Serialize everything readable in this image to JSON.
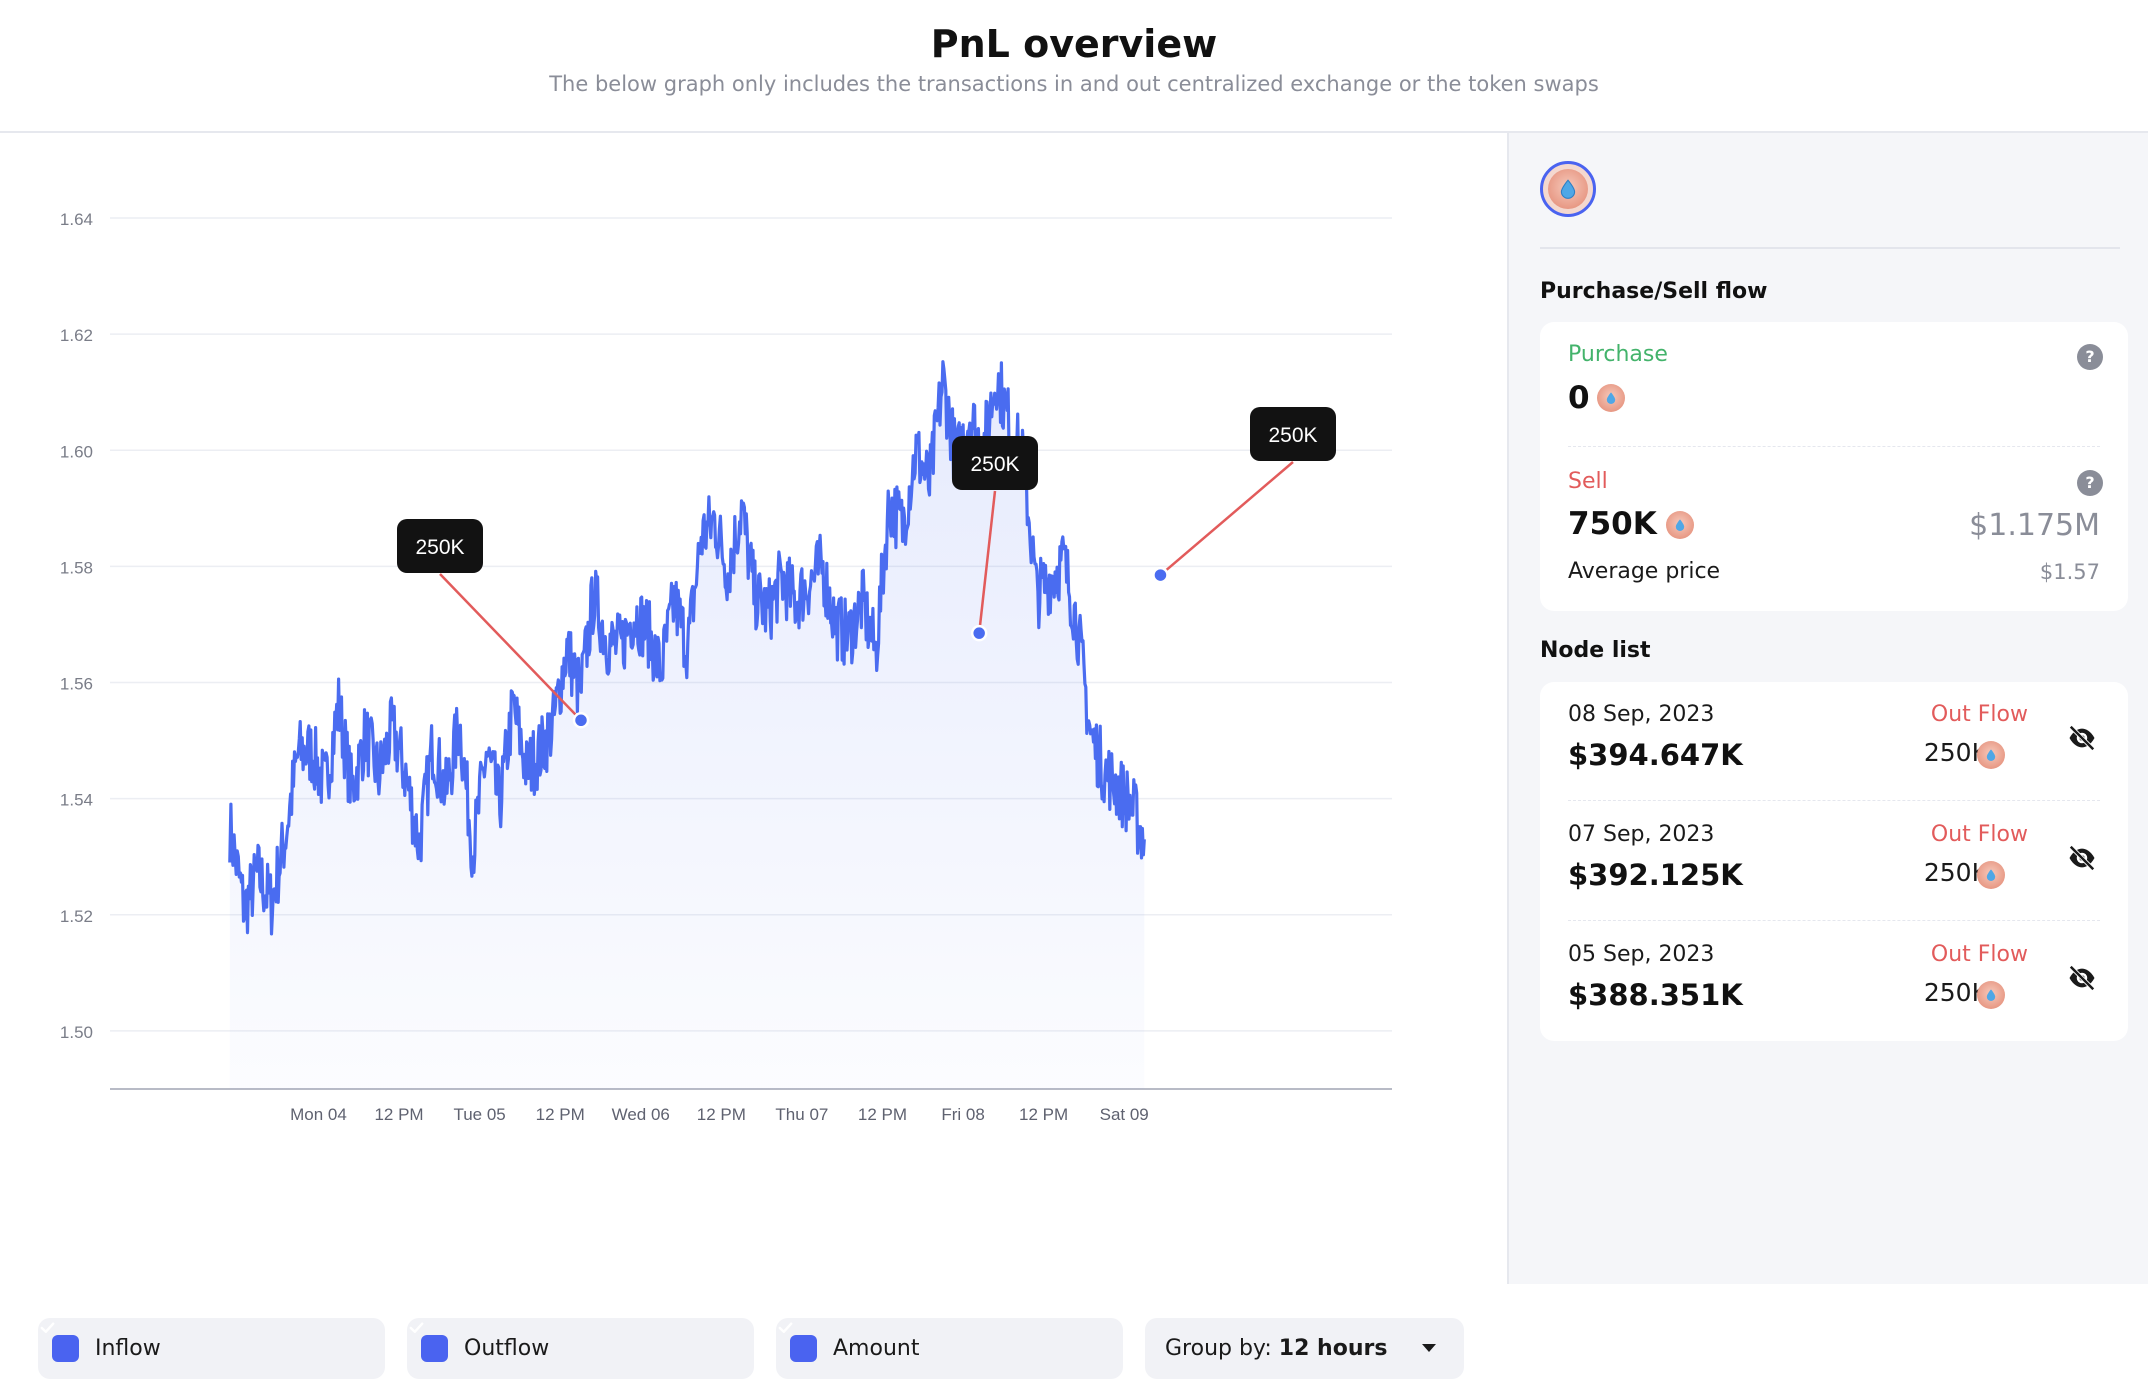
{
  "header": {
    "title": "PnL overview",
    "subtitle": "The below graph only includes the transactions in and out centralized exchange or the token swaps"
  },
  "chart_data": {
    "type": "area",
    "title": "",
    "xlabel": "",
    "ylabel": "",
    "ylim": [
      1.49,
      1.64
    ],
    "yticks": [
      "1.64",
      "1.62",
      "1.60",
      "1.58",
      "1.56",
      "1.54",
      "1.52",
      "1.50"
    ],
    "xticks": [
      "Mon 04",
      "12 PM",
      "Tue 05",
      "12 PM",
      "Wed 06",
      "12 PM",
      "Thu 07",
      "12 PM",
      "Fri 08",
      "12 PM",
      "Sat 09"
    ],
    "grid": true,
    "series": [
      {
        "color": "#4a6cf0",
        "x_hours_from_mon04": [
          -13.2,
          -11,
          -9,
          -7,
          -5,
          -3,
          -1,
          1,
          3,
          5,
          7,
          9,
          11,
          13,
          15,
          17,
          19,
          21,
          23,
          25,
          27,
          29,
          31,
          33,
          35,
          37,
          39,
          41,
          43,
          45,
          47,
          49,
          51,
          53,
          55,
          57,
          59,
          61,
          63,
          65,
          67,
          69,
          71,
          73,
          75,
          77,
          79,
          81,
          83,
          85,
          87,
          89,
          91,
          93,
          95,
          97,
          99,
          101,
          103,
          105,
          107,
          109,
          111,
          113,
          115,
          117,
          119,
          121,
          123
        ],
        "values": [
          1.535,
          1.521,
          1.527,
          1.522,
          1.533,
          1.548,
          1.548,
          1.542,
          1.556,
          1.541,
          1.551,
          1.544,
          1.552,
          1.544,
          1.532,
          1.549,
          1.541,
          1.553,
          1.531,
          1.548,
          1.539,
          1.556,
          1.545,
          1.548,
          1.553,
          1.566,
          1.558,
          1.575,
          1.567,
          1.566,
          1.572,
          1.569,
          1.562,
          1.574,
          1.566,
          1.585,
          1.588,
          1.579,
          1.59,
          1.575,
          1.572,
          1.578,
          1.574,
          1.577,
          1.58,
          1.57,
          1.568,
          1.574,
          1.565,
          1.591,
          1.587,
          1.6,
          1.594,
          1.612,
          1.598,
          1.606,
          1.6,
          1.613,
          1.604,
          1.598,
          1.575,
          1.578,
          1.581,
          1.57,
          1.551,
          1.545,
          1.542,
          1.539,
          1.533
        ]
      }
    ],
    "annotations": [
      {
        "label": "250K",
        "x_hours_from_mon04": 39.1,
        "y": 1.5535
      },
      {
        "label": "250K",
        "x_hours_from_mon04": 98.4,
        "y": 1.5685
      },
      {
        "label": "250K",
        "x_hours_from_mon04": 125.4,
        "y": 1.5785
      }
    ]
  },
  "controls": {
    "inflow_label": "Inflow",
    "outflow_label": "Outflow",
    "amount_label": "Amount",
    "group_prefix": "Group by:",
    "group_value": "12 hours"
  },
  "sidebar": {
    "flow_title": "Purchase/Sell flow",
    "purchase_label": "Purchase",
    "purchase_value": "0",
    "sell_label": "Sell",
    "sell_value": "750K",
    "sell_usd": "$1.175M",
    "avg_label": "Average price",
    "avg_value": "$1.57",
    "node_title": "Node list",
    "nodes": [
      {
        "date": "08 Sep, 2023",
        "amount": "$394.647K",
        "flow": "Out Flow",
        "value": "250K"
      },
      {
        "date": "07 Sep, 2023",
        "amount": "$392.125K",
        "flow": "Out Flow",
        "value": "250K"
      },
      {
        "date": "05 Sep, 2023",
        "amount": "$388.351K",
        "flow": "Out Flow",
        "value": "250K"
      }
    ]
  }
}
